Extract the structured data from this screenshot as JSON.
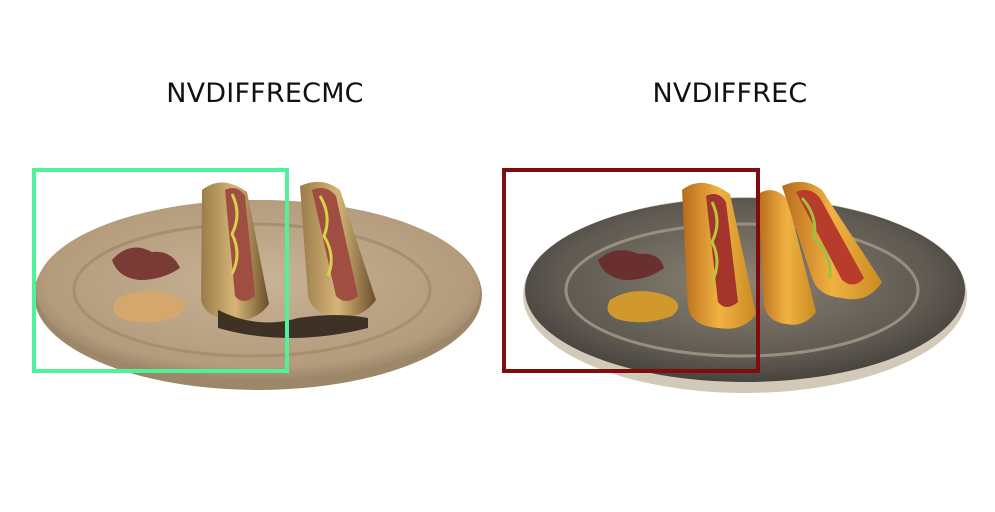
{
  "panels": [
    {
      "title": "NVDIFFRECMC",
      "highlight_color": "#4ff29a"
    },
    {
      "title": "NVDIFFREC",
      "highlight_color": "#800d0d"
    }
  ]
}
